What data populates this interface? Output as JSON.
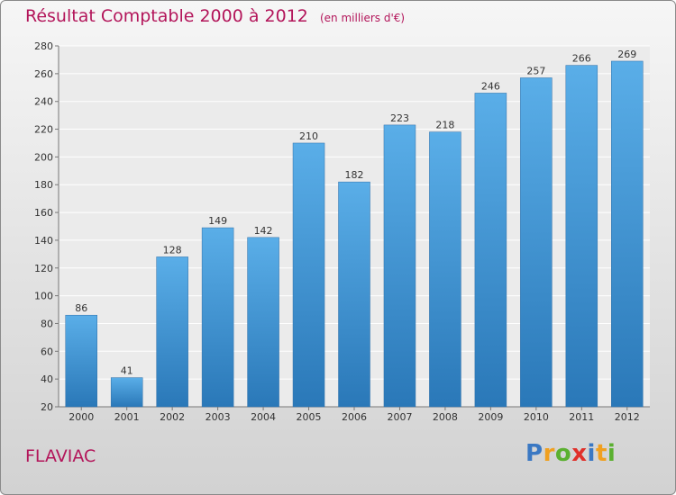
{
  "header": {
    "title": "Résultat Comptable 2000 à 2012",
    "unit_note": "(en milliers d'€)"
  },
  "footer": {
    "commune": "FLAVIAC",
    "logo_letters": [
      "P",
      "r",
      "o",
      "x",
      "i",
      "t",
      "i"
    ],
    "logo_colors": [
      "#3a78c3",
      "#f0a020",
      "#5bb030",
      "#e0302a",
      "#3a78c3",
      "#f0a020",
      "#5bb030"
    ]
  },
  "chart_data": {
    "type": "bar",
    "title": "Résultat Comptable 2000 à 2012",
    "subtitle": "(en milliers d'€)",
    "categories": [
      "2000",
      "2001",
      "2002",
      "2003",
      "2004",
      "2005",
      "2006",
      "2007",
      "2008",
      "2009",
      "2010",
      "2011",
      "2012"
    ],
    "values": [
      86,
      41,
      128,
      149,
      142,
      210,
      182,
      223,
      218,
      246,
      257,
      266,
      269
    ],
    "ylim": [
      20,
      280
    ],
    "yticks": [
      20,
      40,
      60,
      80,
      100,
      120,
      140,
      160,
      180,
      200,
      220,
      240,
      260,
      280
    ],
    "grid": true,
    "bar_color_top": "#5aaee8",
    "bar_color_bottom": "#2a78b8"
  }
}
